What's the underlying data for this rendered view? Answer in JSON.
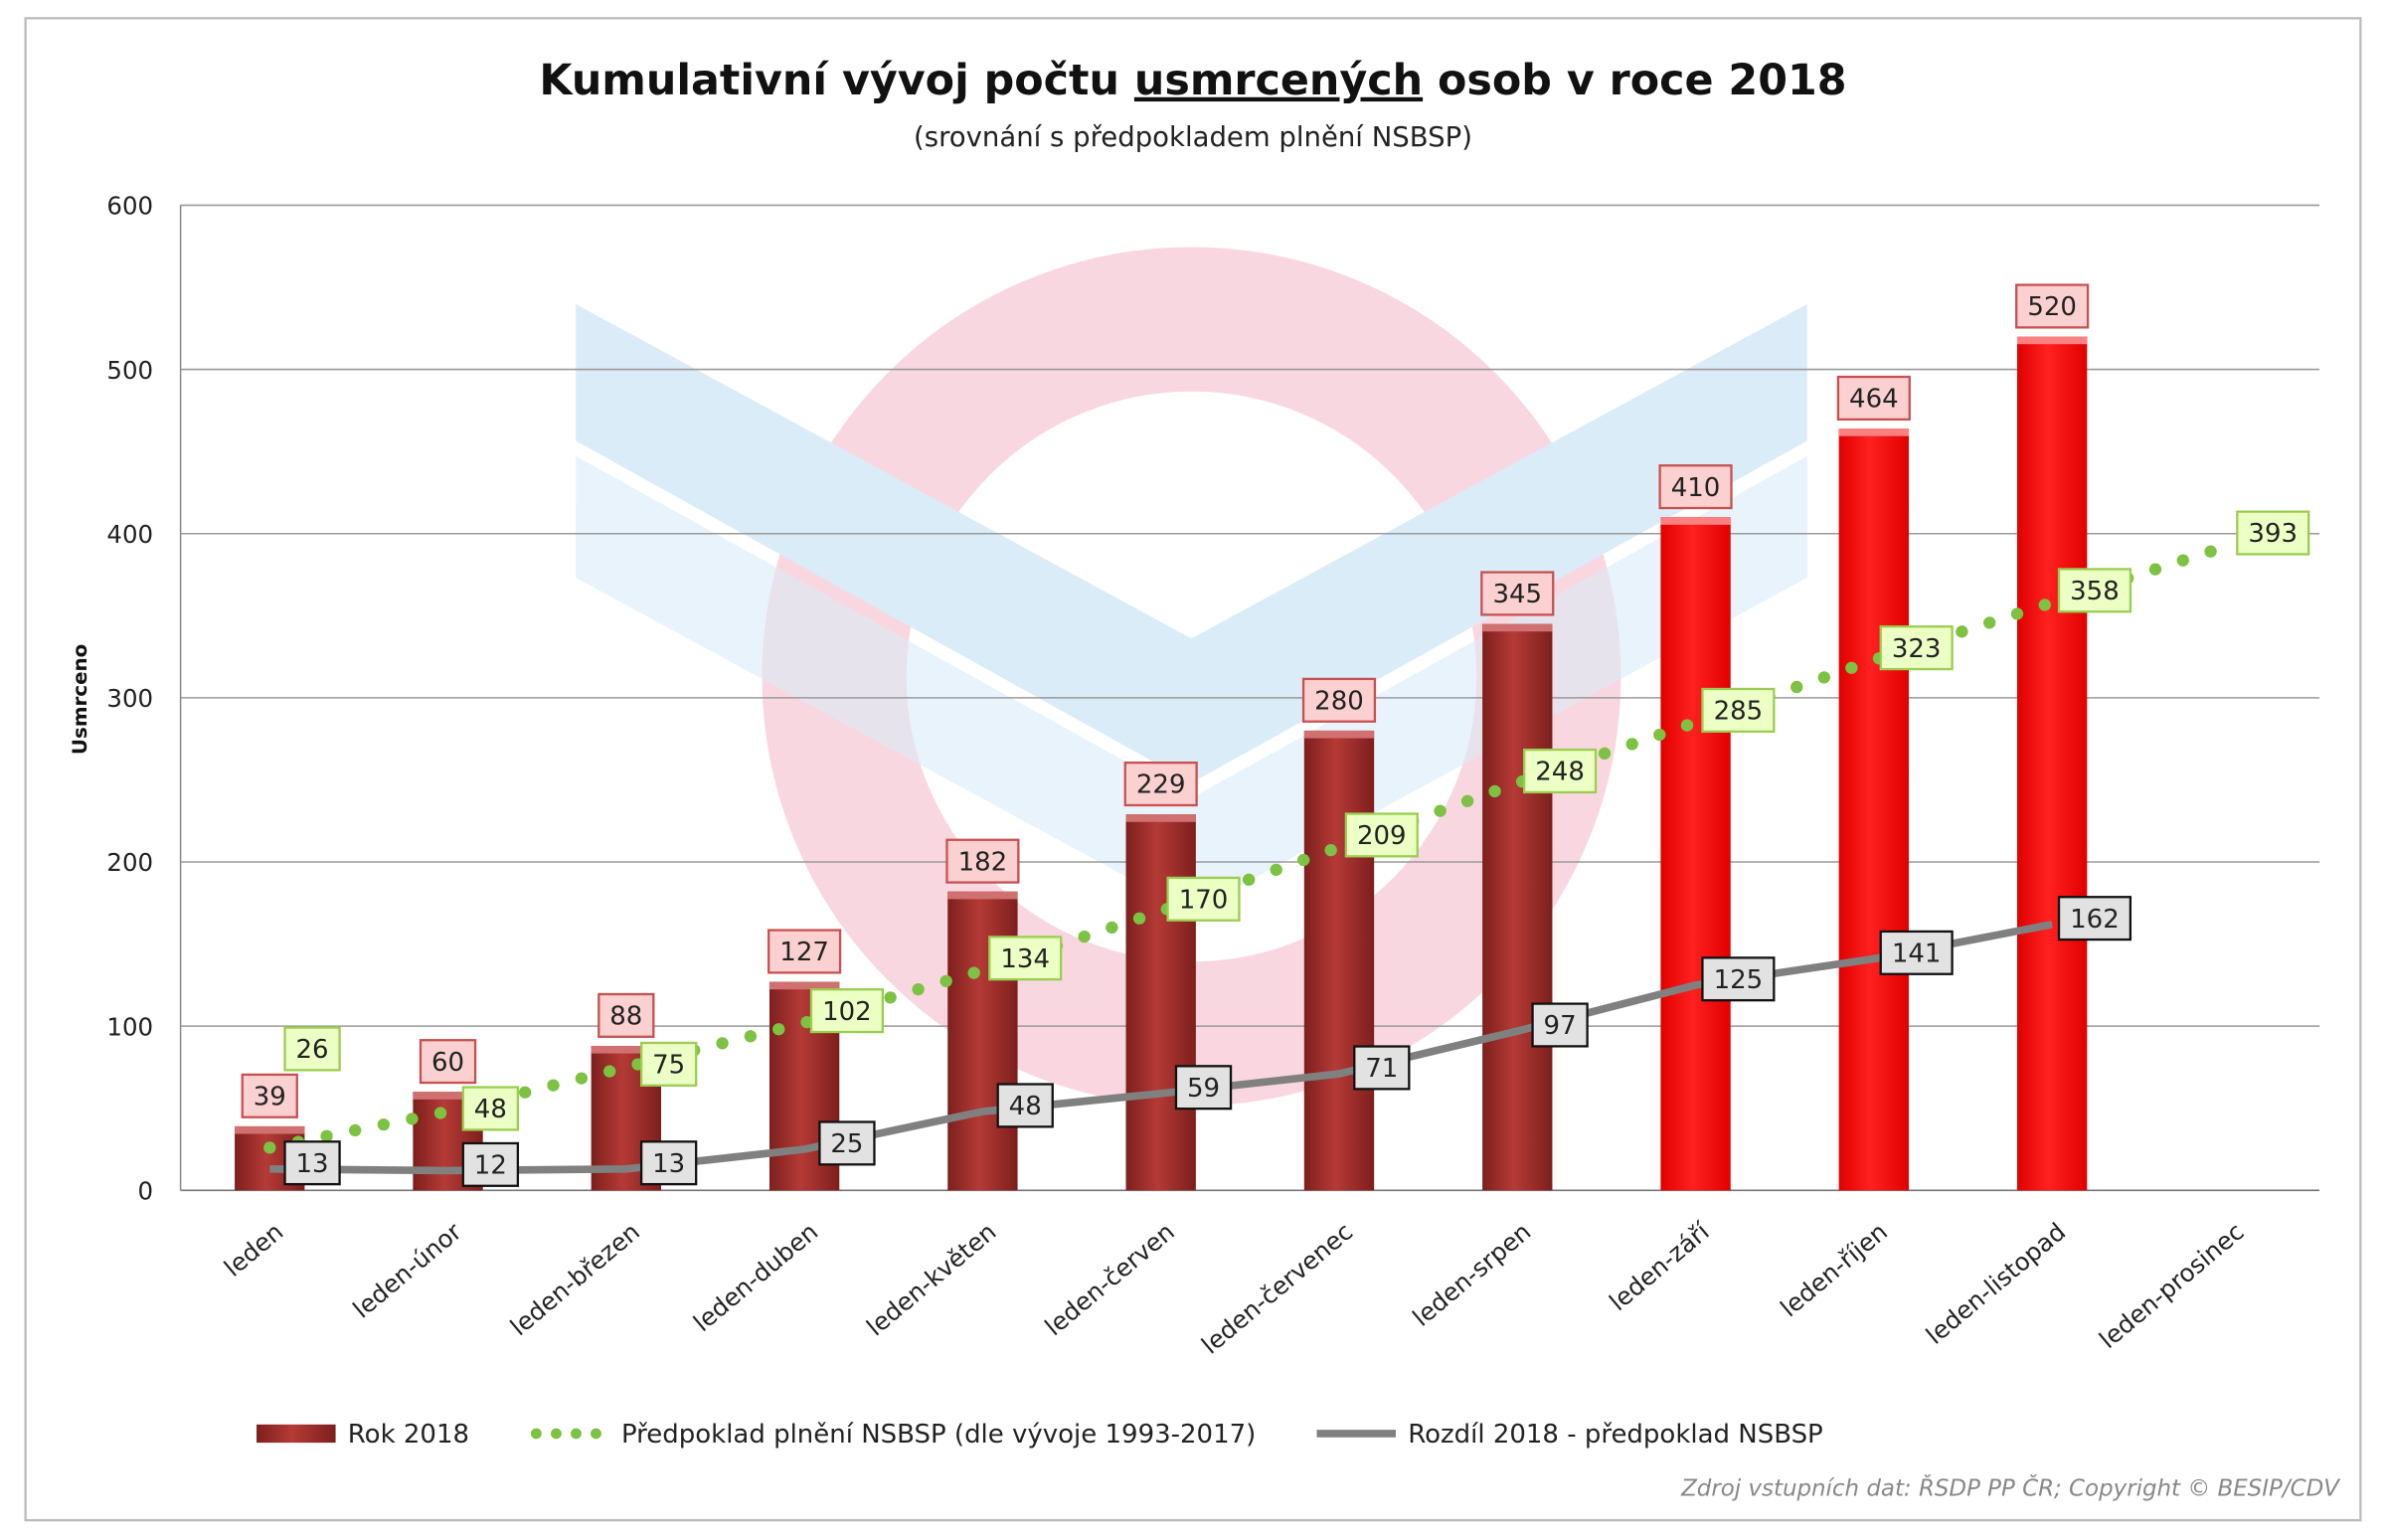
{
  "chart_data": {
    "type": "bar",
    "title_parts": [
      "Kumulativní vývoj počtu ",
      "usmrcených",
      " osob v roce 2018"
    ],
    "subtitle": "(srovnání s předpokladem plnění NSBSP)",
    "ylabel": "Usmrceno",
    "xlabel": "",
    "ylim": [
      0,
      600
    ],
    "yticks": [
      0,
      100,
      200,
      300,
      400,
      500,
      600
    ],
    "grid": true,
    "legend_placement": "bottom",
    "categories": [
      "leden",
      "leden-únor",
      "leden-březen",
      "leden-duben",
      "leden-květen",
      "leden-červen",
      "leden-červenec",
      "leden-srpen",
      "leden-září",
      "leden-říjen",
      "leden-listopad",
      "leden-prosinec"
    ],
    "series": [
      {
        "name": "Rok 2018",
        "type": "bar",
        "values": [
          39,
          60,
          88,
          127,
          182,
          229,
          280,
          345,
          410,
          464,
          520,
          null
        ],
        "color": "#a3302d",
        "highlight_color": "#ff0000",
        "highlight_from_index": 8
      },
      {
        "name": "Předpoklad plnění NSBSP (dle vývoje 1993-2017)",
        "type": "line-dotted",
        "values": [
          26,
          48,
          75,
          102,
          134,
          170,
          209,
          248,
          285,
          323,
          358,
          393
        ],
        "color": "#7dc242"
      },
      {
        "name": "Rozdíl 2018 - předpoklad NSBSP",
        "type": "line",
        "values": [
          13,
          12,
          13,
          25,
          48,
          59,
          71,
          97,
          125,
          141,
          162,
          null
        ],
        "color": "#808080"
      }
    ],
    "source_note": "Zdroj vstupních dat: ŘSDP PP ČR; Copyright © BESIP/CDV",
    "watermark_text": "BESIP"
  }
}
